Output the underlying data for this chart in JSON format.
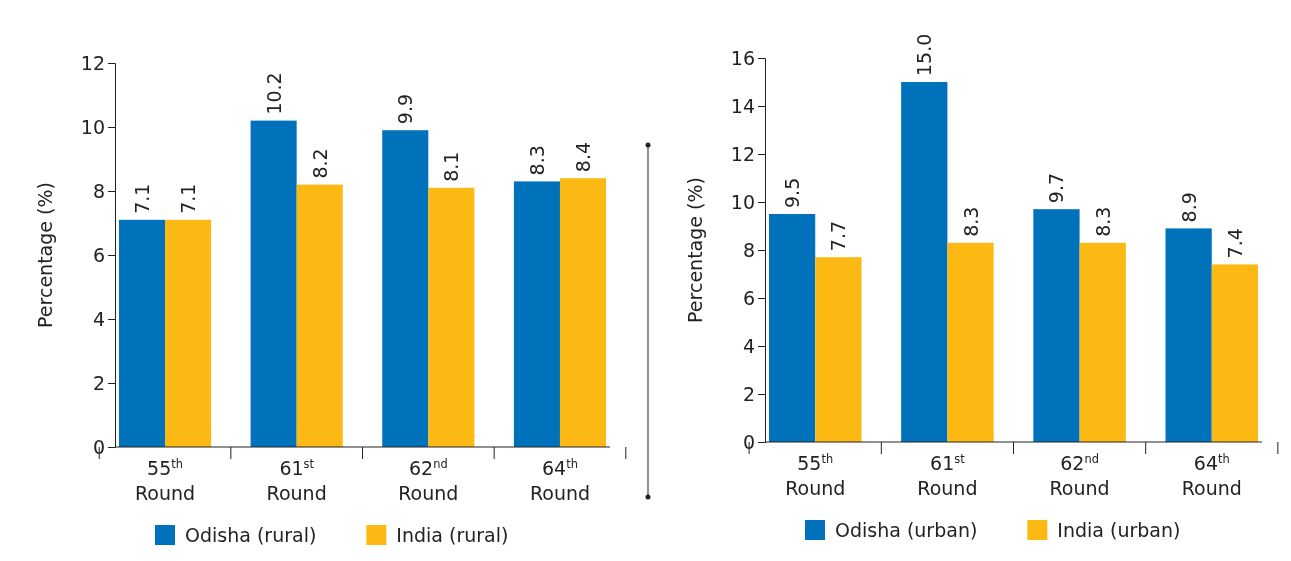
{
  "chart_data": [
    {
      "type": "bar",
      "ylabel": "Percentage (%)",
      "categories": [
        "55$^{th}$ Round",
        "61$^{st}$ Round",
        "62$^{nd}$ Round",
        "64$^{th}$ Round"
      ],
      "series": [
        {
          "name": "Odisha (rural)",
          "color": "#0072bc",
          "values": [
            7.1,
            10.2,
            9.9,
            8.3
          ],
          "value_labels": [
            "7.1",
            "10.2",
            "9.9",
            "8.3"
          ]
        },
        {
          "name": "India (rural)",
          "color": "#fdb913",
          "values": [
            7.1,
            8.2,
            8.1,
            8.4
          ],
          "value_labels": [
            "7.1",
            "8.2",
            "8.1",
            "8.4"
          ]
        }
      ],
      "ylim": [
        0,
        12
      ],
      "yticks": [
        0,
        2,
        4,
        6,
        8,
        10,
        12
      ],
      "grid": false,
      "legend": "bottom"
    },
    {
      "type": "bar",
      "ylabel": "Percentage (%)",
      "categories": [
        "55$^{th}$ Round",
        "61$^{st}$ Round",
        "62$^{nd}$ Round",
        "64$^{th}$ Round"
      ],
      "series": [
        {
          "name": "Odisha (urban)",
          "color": "#0072bc",
          "values": [
            9.5,
            15.0,
            9.7,
            8.9
          ],
          "value_labels": [
            "9.5",
            "15.0",
            "9.7",
            "8.9"
          ]
        },
        {
          "name": "India (urban)",
          "color": "#fdb913",
          "values": [
            7.7,
            8.3,
            8.3,
            7.4
          ],
          "value_labels": [
            "7.7",
            "8.3",
            "8.3",
            "7.4"
          ]
        }
      ],
      "ylim": [
        0,
        16
      ],
      "yticks": [
        0,
        2,
        4,
        6,
        8,
        10,
        12,
        14,
        16
      ],
      "grid": false,
      "legend": "bottom"
    }
  ]
}
